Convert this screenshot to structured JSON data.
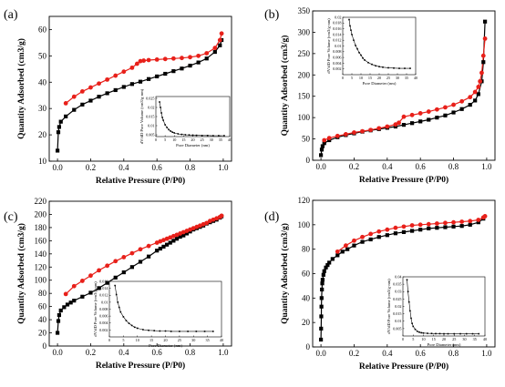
{
  "chart_data": [
    {
      "type": "scatter",
      "panel_label": "(a)",
      "xlabel": "Relative Pressure (P/P0)",
      "ylabel": "Quantity Adsorbed (cm3/g)",
      "xlim": [
        -0.05,
        1.05
      ],
      "ylim": [
        10,
        65
      ],
      "xticks": [
        0.0,
        0.2,
        0.4,
        0.6,
        0.8,
        1.0
      ],
      "yticks": [
        10,
        20,
        30,
        40,
        50,
        60
      ],
      "series": [
        {
          "role": "adsorption",
          "color": "#000000",
          "marker": "square",
          "x": [
            0.0,
            0.005,
            0.01,
            0.02,
            0.05,
            0.1,
            0.15,
            0.2,
            0.25,
            0.3,
            0.35,
            0.4,
            0.45,
            0.5,
            0.55,
            0.6,
            0.65,
            0.7,
            0.75,
            0.8,
            0.85,
            0.9,
            0.95,
            0.98,
            0.99
          ],
          "y": [
            14,
            21,
            23,
            25,
            27,
            29.5,
            31.5,
            33,
            34.5,
            35.8,
            37,
            38.2,
            39.3,
            40.2,
            41.2,
            42.2,
            43.2,
            44.2,
            45.2,
            46.3,
            47.5,
            49,
            51.5,
            54,
            56
          ]
        },
        {
          "role": "desorption",
          "color": "#e8201a",
          "marker": "circle",
          "x": [
            0.99,
            0.98,
            0.95,
            0.9,
            0.85,
            0.8,
            0.75,
            0.7,
            0.65,
            0.6,
            0.55,
            0.52,
            0.5,
            0.48,
            0.45,
            0.4,
            0.35,
            0.3,
            0.25,
            0.2,
            0.15,
            0.1,
            0.05
          ],
          "y": [
            58.5,
            56,
            53,
            51,
            50,
            49.5,
            49.2,
            49,
            48.8,
            48.6,
            48.4,
            48.2,
            48,
            47,
            45.5,
            44,
            42.5,
            41,
            39.5,
            38,
            36.5,
            34.5,
            32
          ]
        }
      ],
      "inset": {
        "xlabel": "Pore Diameter (nm)",
        "ylabel": "dV/dD Pore Volume (cm3/g·nm)",
        "xlim": [
          0,
          40
        ],
        "ylim": [
          0.004,
          0.026
        ],
        "xticks": [
          0,
          5,
          10,
          15,
          20,
          25,
          30,
          35,
          40
        ],
        "yticks": [
          0.005,
          0.01,
          0.015,
          0.02,
          0.025
        ],
        "x": [
          2,
          2.5,
          3,
          3.5,
          4,
          5,
          6,
          7,
          8,
          9,
          10,
          12,
          14,
          16,
          18,
          20,
          22,
          25,
          28,
          31,
          34,
          37
        ],
        "y": [
          0.023,
          0.02,
          0.017,
          0.0145,
          0.013,
          0.0105,
          0.009,
          0.0078,
          0.007,
          0.0064,
          0.006,
          0.0055,
          0.0052,
          0.005,
          0.0049,
          0.0048,
          0.0047,
          0.0046,
          0.0046,
          0.0045,
          0.0045,
          0.0045
        ]
      }
    },
    {
      "type": "scatter",
      "panel_label": "(b)",
      "xlabel": "Relative Pressure (P/P0)",
      "ylabel": "Quantity Adsorbed (cm3/g)",
      "xlim": [
        -0.05,
        1.05
      ],
      "ylim": [
        0,
        350
      ],
      "xticks": [
        0.0,
        0.2,
        0.4,
        0.6,
        0.8,
        1.0
      ],
      "yticks": [
        0,
        50,
        100,
        150,
        200,
        250,
        300,
        350
      ],
      "series": [
        {
          "role": "adsorption",
          "color": "#000000",
          "marker": "square",
          "x": [
            0.0,
            0.005,
            0.01,
            0.02,
            0.05,
            0.1,
            0.15,
            0.2,
            0.25,
            0.3,
            0.35,
            0.4,
            0.45,
            0.5,
            0.55,
            0.6,
            0.65,
            0.7,
            0.75,
            0.8,
            0.85,
            0.9,
            0.93,
            0.95,
            0.97,
            0.98,
            0.99
          ],
          "y": [
            12,
            25,
            33,
            40,
            47,
            54,
            59,
            63,
            67,
            70,
            73,
            76,
            79,
            83,
            87,
            91,
            95,
            100,
            105,
            112,
            120,
            130,
            140,
            155,
            185,
            230,
            325
          ]
        },
        {
          "role": "desorption",
          "color": "#e8201a",
          "marker": "circle",
          "x": [
            0.99,
            0.98,
            0.97,
            0.96,
            0.95,
            0.93,
            0.9,
            0.85,
            0.8,
            0.75,
            0.7,
            0.65,
            0.6,
            0.55,
            0.5,
            0.47,
            0.45,
            0.4,
            0.35,
            0.3,
            0.25,
            0.2,
            0.15,
            0.1,
            0.05,
            0.02
          ],
          "y": [
            285,
            245,
            205,
            185,
            172,
            160,
            148,
            138,
            130,
            124,
            119,
            114,
            110,
            106,
            102,
            88,
            84,
            79,
            75,
            71,
            68,
            65,
            61,
            57,
            52,
            47
          ]
        }
      ],
      "inset": {
        "xlabel": "Pore Diameter (nm)",
        "ylabel": "dV/dD Pore Volume (cm3/g·nm)",
        "xlim": [
          0,
          40
        ],
        "ylim": [
          0,
          0.02
        ],
        "xticks": [
          0,
          5,
          10,
          15,
          20,
          25,
          30,
          35,
          40
        ],
        "yticks": [
          0.002,
          0.004,
          0.006,
          0.008,
          0.01,
          0.012,
          0.014,
          0.016,
          0.018,
          0.02
        ],
        "x": [
          3.5,
          4,
          4.5,
          5,
          6,
          7,
          8,
          9,
          10,
          11,
          12,
          14,
          16,
          18,
          20,
          22,
          25,
          28,
          31,
          34,
          37
        ],
        "y": [
          0.0192,
          0.017,
          0.0155,
          0.014,
          0.012,
          0.0102,
          0.009,
          0.0077,
          0.0068,
          0.0058,
          0.0051,
          0.0042,
          0.0036,
          0.0031,
          0.0028,
          0.0026,
          0.0024,
          0.0023,
          0.0022,
          0.0022,
          0.0022
        ]
      }
    },
    {
      "type": "scatter",
      "panel_label": "(c)",
      "xlabel": "Relative Pressure (P/P0)",
      "ylabel": "Quantity Adsorbed (cm3/g)",
      "xlim": [
        -0.05,
        1.05
      ],
      "ylim": [
        0,
        220
      ],
      "xticks": [
        0.0,
        0.2,
        0.4,
        0.6,
        0.8,
        1.0
      ],
      "yticks": [
        0,
        20,
        40,
        60,
        80,
        100,
        120,
        140,
        160,
        180,
        200,
        220
      ],
      "series": [
        {
          "role": "adsorption",
          "color": "#000000",
          "marker": "square",
          "x": [
            0.0,
            0.005,
            0.01,
            0.02,
            0.04,
            0.06,
            0.08,
            0.1,
            0.15,
            0.2,
            0.25,
            0.3,
            0.35,
            0.4,
            0.45,
            0.5,
            0.55,
            0.6,
            0.62,
            0.64,
            0.66,
            0.68,
            0.7,
            0.72,
            0.74,
            0.76,
            0.78,
            0.8,
            0.82,
            0.84,
            0.86,
            0.88,
            0.9,
            0.92,
            0.94,
            0.96,
            0.98,
            0.99
          ],
          "y": [
            20,
            38,
            47,
            54,
            59,
            63,
            66,
            69,
            75,
            81,
            88,
            96,
            104,
            112,
            120,
            128,
            136,
            145,
            148,
            151,
            154,
            157,
            160,
            163,
            166,
            168,
            171,
            174,
            177,
            179,
            181,
            183,
            186,
            188,
            190,
            192,
            195,
            197
          ]
        },
        {
          "role": "desorption",
          "color": "#e8201a",
          "marker": "circle",
          "x": [
            0.99,
            0.98,
            0.96,
            0.94,
            0.92,
            0.9,
            0.88,
            0.86,
            0.84,
            0.82,
            0.8,
            0.78,
            0.76,
            0.74,
            0.72,
            0.7,
            0.68,
            0.66,
            0.64,
            0.62,
            0.6,
            0.55,
            0.5,
            0.45,
            0.4,
            0.35,
            0.3,
            0.25,
            0.2,
            0.15,
            0.1,
            0.05
          ],
          "y": [
            198,
            196,
            194,
            192,
            190,
            187,
            185,
            183,
            181,
            179,
            177,
            175,
            173,
            171,
            169,
            167,
            165,
            163,
            161,
            159,
            157,
            152,
            147,
            141,
            135,
            129,
            122,
            115,
            107,
            99,
            91,
            79
          ]
        }
      ],
      "inset": {
        "xlabel": "Pore Diameter (nm)",
        "ylabel": "dV/dD Pore Volume (cm3/g·nm)",
        "xlim": [
          0,
          40
        ],
        "ylim": [
          0,
          0.016
        ],
        "xticks": [
          0,
          5,
          10,
          15,
          20,
          25,
          30,
          35,
          40
        ],
        "yticks": [
          0.002,
          0.004,
          0.006,
          0.008,
          0.01,
          0.012,
          0.014,
          0.016
        ],
        "x": [
          2,
          2.5,
          3,
          3.5,
          4,
          5,
          6,
          7,
          8,
          9,
          10,
          12,
          14,
          16,
          18,
          20,
          22,
          25,
          28,
          31,
          34,
          37
        ],
        "y": [
          0.0148,
          0.0122,
          0.01,
          0.0085,
          0.0072,
          0.0058,
          0.0047,
          0.0039,
          0.0033,
          0.0028,
          0.0025,
          0.0021,
          0.0019,
          0.0018,
          0.0017,
          0.0017,
          0.0016,
          0.0016,
          0.0016,
          0.0016,
          0.0016,
          0.0016
        ]
      }
    },
    {
      "type": "scatter",
      "panel_label": "(d)",
      "xlabel": "Relative Pressure (P/P0)",
      "ylabel": "Quantity Adsorbed (cm3/g)",
      "xlim": [
        -0.05,
        1.05
      ],
      "ylim": [
        0,
        120
      ],
      "xticks": [
        0.0,
        0.2,
        0.4,
        0.6,
        0.8,
        1.0
      ],
      "yticks": [
        0,
        20,
        40,
        60,
        80,
        100,
        120
      ],
      "series": [
        {
          "role": "adsorption",
          "color": "#000000",
          "marker": "square",
          "x": [
            0.0,
            0.001,
            0.002,
            0.003,
            0.004,
            0.006,
            0.008,
            0.01,
            0.015,
            0.02,
            0.03,
            0.04,
            0.05,
            0.07,
            0.1,
            0.13,
            0.16,
            0.2,
            0.25,
            0.3,
            0.35,
            0.4,
            0.45,
            0.5,
            0.55,
            0.6,
            0.65,
            0.7,
            0.75,
            0.8,
            0.85,
            0.9,
            0.95,
            0.98
          ],
          "y": [
            6,
            15,
            25,
            33,
            40,
            47,
            52,
            55,
            59,
            62,
            65,
            67,
            69,
            72,
            75,
            78,
            80,
            83,
            86,
            88,
            90,
            91.5,
            93,
            94,
            95,
            96,
            97,
            97.5,
            98,
            98.5,
            99,
            100,
            102,
            105
          ]
        },
        {
          "role": "desorption",
          "color": "#e8201a",
          "marker": "circle",
          "x": [
            0.99,
            0.98,
            0.95,
            0.9,
            0.85,
            0.8,
            0.75,
            0.7,
            0.65,
            0.6,
            0.55,
            0.5,
            0.45,
            0.4,
            0.35,
            0.3,
            0.25,
            0.2,
            0.15,
            0.1
          ],
          "y": [
            107,
            106,
            104,
            103,
            102.5,
            102,
            101.5,
            101,
            100.5,
            100,
            99.5,
            98.5,
            97.5,
            96,
            94.5,
            92.5,
            90,
            87,
            83,
            78
          ]
        }
      ],
      "inset": {
        "xlabel": "Pore Diameter (nm)",
        "ylabel": "dV/dD Pore Volume (cm3/g·nm)",
        "xlim": [
          0,
          40
        ],
        "ylim": [
          0,
          0.04
        ],
        "xticks": [
          0,
          5,
          10,
          15,
          20,
          25,
          30,
          35,
          40
        ],
        "yticks": [
          0.005,
          0.01,
          0.015,
          0.02,
          0.025,
          0.03,
          0.035,
          0.04
        ],
        "x": [
          2,
          2.5,
          3,
          3.5,
          4,
          4.5,
          5,
          6,
          7,
          8,
          9,
          10,
          12,
          14,
          16,
          18,
          20,
          22,
          25,
          28,
          31,
          34,
          37
        ],
        "y": [
          0.038,
          0.03,
          0.023,
          0.017,
          0.012,
          0.0085,
          0.0065,
          0.0045,
          0.0032,
          0.0026,
          0.0022,
          0.002,
          0.0018,
          0.0017,
          0.0016,
          0.0016,
          0.0015,
          0.0015,
          0.0015,
          0.0015,
          0.0015,
          0.0015,
          0.0015
        ]
      }
    }
  ]
}
